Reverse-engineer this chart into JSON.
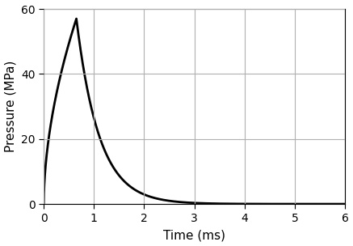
{
  "title": "",
  "xlabel": "Time (ms)",
  "ylabel": "Pressure (MPa)",
  "xlim": [
    0,
    6
  ],
  "ylim": [
    0,
    60
  ],
  "xticks": [
    0,
    1,
    2,
    3,
    4,
    5,
    6
  ],
  "yticks": [
    0,
    20,
    40,
    60
  ],
  "peak_pressure": 57.0,
  "peak_time": 0.65,
  "decay_constant": 2.2,
  "rise_power": 0.55,
  "line_color": "#000000",
  "line_width": 2.0,
  "background_color": "#ffffff",
  "grid_color": "#b0b0b0",
  "grid_linewidth": 0.8,
  "font_size_label": 11,
  "font_size_tick": 10,
  "spine_linewidth": 0.8
}
